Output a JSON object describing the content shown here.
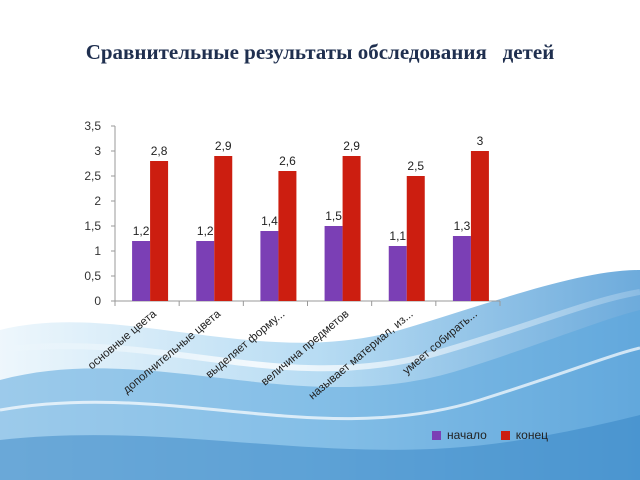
{
  "slide": {
    "title": "Сравнительные результаты обследования   детей"
  },
  "colors": {
    "series1": "#7b3fb5",
    "series2": "#cc1e10",
    "axis": "#999999",
    "wave_light": "#cfe7f7",
    "wave_mid": "#8cc6ea",
    "wave_dark": "#2f7fc1"
  },
  "chart_data": {
    "type": "bar",
    "categories": [
      "основные цвета",
      "дополнительные цвета",
      "выделяет форму...",
      "величина предметов",
      "называет материал, из...",
      "умеет собирать..."
    ],
    "series": [
      {
        "name": "начало",
        "values": [
          1.2,
          1.2,
          1.4,
          1.5,
          1.1,
          1.3
        ],
        "labels": [
          "1,2",
          "1,2",
          "1,4",
          "1,5",
          "1,1",
          "1,3"
        ]
      },
      {
        "name": "конец",
        "values": [
          2.8,
          2.9,
          2.6,
          2.9,
          2.5,
          3.0
        ],
        "labels": [
          "2,8",
          "2,9",
          "2,6",
          "2,9",
          "2,5",
          "3"
        ]
      }
    ],
    "ylim": [
      0,
      3.5
    ],
    "yticks": [
      "0",
      "0,5",
      "1",
      "1,5",
      "2",
      "2,5",
      "3",
      "3,5"
    ],
    "grid": false,
    "legend_position": "bottom-right"
  }
}
